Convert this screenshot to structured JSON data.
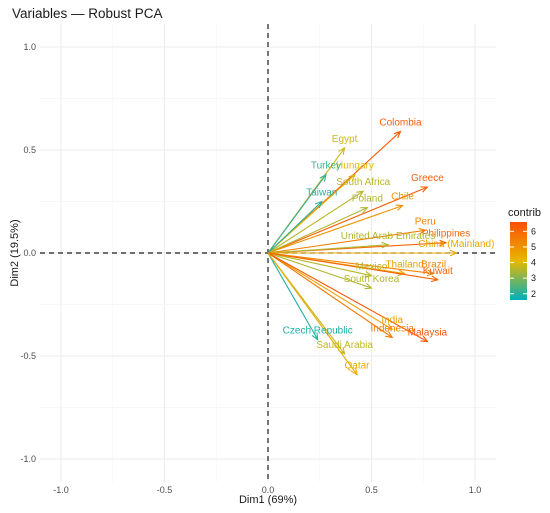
{
  "chart_data": {
    "type": "scatter",
    "title": "Variables — Robust PCA",
    "xlabel": "Dim1 (69%)",
    "ylabel": "Dim2 (19.5%)",
    "xlim": [
      -1.0,
      1.0
    ],
    "ylim": [
      -1.0,
      1.0
    ],
    "x_ticks": [
      "-1.0",
      "-0.5",
      "0.0",
      "0.5",
      "1.0"
    ],
    "y_ticks": [
      "-1.0",
      "-0.5",
      "0.0",
      "0.5",
      "1.0"
    ],
    "grid": true,
    "reference_lines": [
      "x=0",
      "y=0"
    ],
    "legend": {
      "title": "contrib",
      "placement": "right",
      "ticks": [
        "2",
        "3",
        "4",
        "5",
        "6"
      ],
      "range": [
        1.6,
        6.6
      ]
    },
    "color_scale": [
      "#00AFBB",
      "#E7B800",
      "#FC4E07"
    ],
    "variables": [
      {
        "name": "Colombia",
        "x": 0.64,
        "y": 0.59,
        "contrib": 6.3
      },
      {
        "name": "Egypt",
        "x": 0.37,
        "y": 0.51,
        "contrib": 3.8
      },
      {
        "name": "Hungary",
        "x": 0.42,
        "y": 0.38,
        "contrib": 4.0
      },
      {
        "name": "Turkey",
        "x": 0.28,
        "y": 0.38,
        "contrib": 2.2
      },
      {
        "name": "South Africa",
        "x": 0.46,
        "y": 0.3,
        "contrib": 3.6
      },
      {
        "name": "Greece",
        "x": 0.77,
        "y": 0.32,
        "contrib": 6.2
      },
      {
        "name": "Chile",
        "x": 0.65,
        "y": 0.23,
        "contrib": 5.0
      },
      {
        "name": "Taiwan",
        "x": 0.26,
        "y": 0.25,
        "contrib": 2.1
      },
      {
        "name": "Poland",
        "x": 0.48,
        "y": 0.22,
        "contrib": 3.5
      },
      {
        "name": "Peru",
        "x": 0.76,
        "y": 0.11,
        "contrib": 5.4
      },
      {
        "name": "Philippines",
        "x": 0.86,
        "y": 0.05,
        "contrib": 6.0
      },
      {
        "name": "United Arab Emirates",
        "x": 0.58,
        "y": 0.04,
        "contrib": 3.5
      },
      {
        "name": "China (Mainland)",
        "x": 0.91,
        "y": 0.0,
        "contrib": 4.5
      },
      {
        "name": "Thailand",
        "x": 0.66,
        "y": -0.1,
        "contrib": 4.6
      },
      {
        "name": "Brazil",
        "x": 0.8,
        "y": -0.1,
        "contrib": 5.3
      },
      {
        "name": "Mexico",
        "x": 0.5,
        "y": -0.11,
        "contrib": 3.6
      },
      {
        "name": "South Korea",
        "x": 0.5,
        "y": -0.17,
        "contrib": 3.5
      },
      {
        "name": "Kuwait",
        "x": 0.82,
        "y": -0.13,
        "contrib": 6.1
      },
      {
        "name": "India",
        "x": 0.6,
        "y": -0.37,
        "contrib": 4.7
      },
      {
        "name": "Indonesia",
        "x": 0.6,
        "y": -0.41,
        "contrib": 5.6
      },
      {
        "name": "Malaysia",
        "x": 0.77,
        "y": -0.43,
        "contrib": 6.4
      },
      {
        "name": "Czech Republic",
        "x": 0.24,
        "y": -0.42,
        "contrib": 1.9
      },
      {
        "name": "Saudi Arabia",
        "x": 0.37,
        "y": -0.49,
        "contrib": 3.7
      },
      {
        "name": "Qatar",
        "x": 0.43,
        "y": -0.59,
        "contrib": 4.4
      }
    ]
  }
}
